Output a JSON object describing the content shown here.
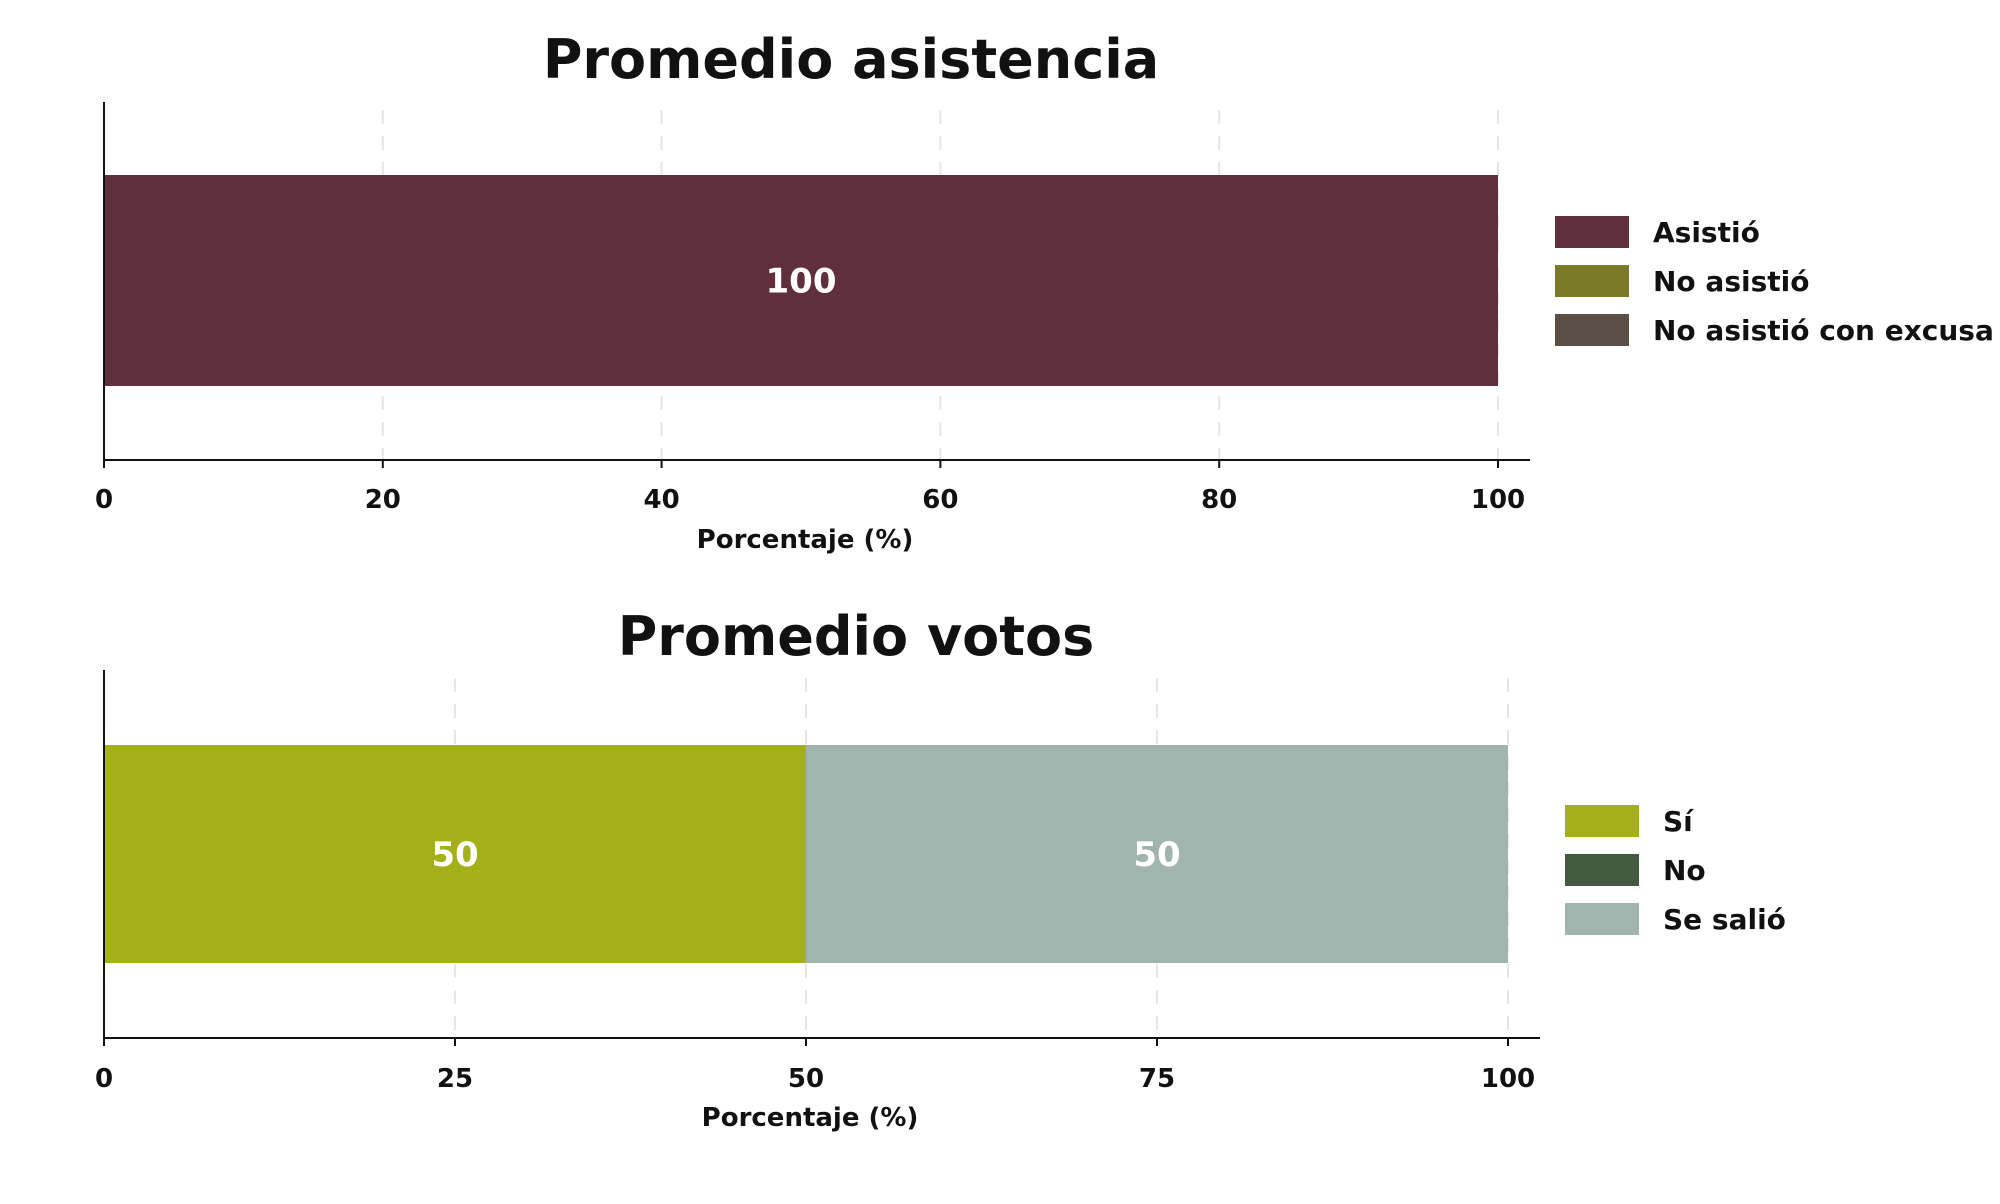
{
  "chart_data": [
    {
      "type": "bar",
      "orientation": "horizontal",
      "stacked": true,
      "title": "Promedio asistencia",
      "xlabel": "Porcentaje (%)",
      "xlim": [
        0,
        100
      ],
      "xticks": [
        0,
        20,
        40,
        60,
        80,
        100
      ],
      "grid": true,
      "legend_position": "right",
      "series": [
        {
          "name": "Asistió",
          "value": 100,
          "color": "#5f2f3c"
        },
        {
          "name": "No asistió",
          "value": 0,
          "color": "#7a7a2a"
        },
        {
          "name": "No asistió con excusa",
          "value": 0,
          "color": "#5b4e44"
        }
      ]
    },
    {
      "type": "bar",
      "orientation": "horizontal",
      "stacked": true,
      "title": "Promedio votos",
      "xlabel": "Porcentaje (%)",
      "xlim": [
        0,
        100
      ],
      "xticks": [
        0,
        25,
        50,
        75,
        100
      ],
      "grid": true,
      "legend_position": "right",
      "series": [
        {
          "name": "Sí",
          "value": 50,
          "color": "#a4b01a"
        },
        {
          "name": "No",
          "value": 0,
          "color": "#445a40"
        },
        {
          "name": "Se salió",
          "value": 50,
          "color": "#a2b4ae"
        }
      ]
    }
  ]
}
